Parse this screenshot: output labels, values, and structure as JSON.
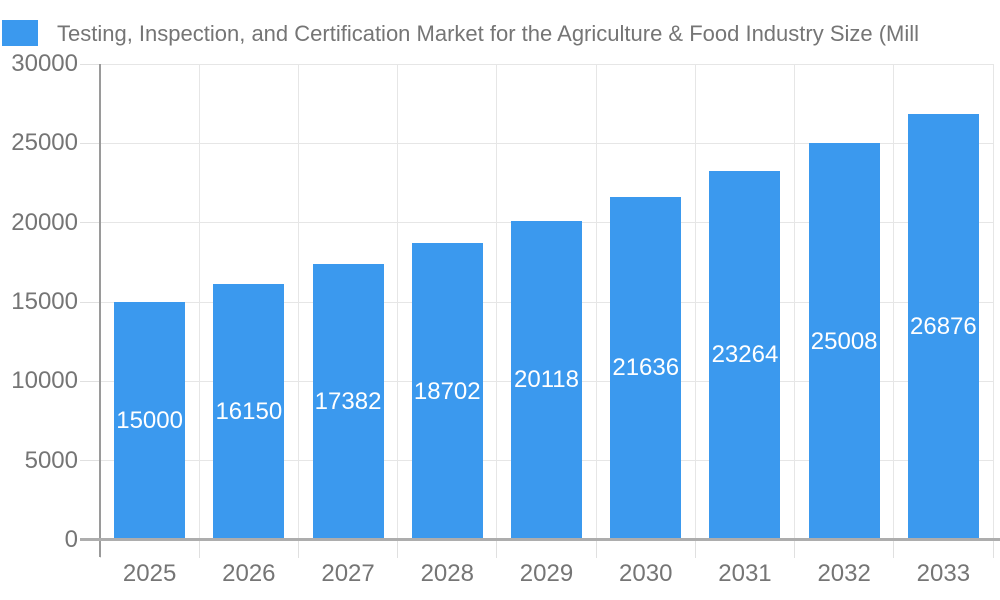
{
  "legend": {
    "position": "top-left",
    "series_label_note": "legend label doubles as chart title"
  },
  "chart_data": {
    "type": "bar",
    "title": "Testing, Inspection, and Certification Market for the Agriculture & Food Industry Size (Mill",
    "categories": [
      "2025",
      "2026",
      "2027",
      "2028",
      "2029",
      "2030",
      "2031",
      "2032",
      "2033"
    ],
    "values": [
      15000,
      16150,
      17382,
      18702,
      20118,
      21636,
      23264,
      25008,
      26876
    ],
    "bar_labels": [
      "15000",
      "16150",
      "17382",
      "18702",
      "20118",
      "21636",
      "23264",
      "25008",
      "26876"
    ],
    "xlabel": "",
    "ylabel": "",
    "ylim": [
      0,
      30000
    ],
    "y_ticks": [
      0,
      5000,
      10000,
      15000,
      20000,
      25000,
      30000
    ],
    "y_tick_labels": [
      "0",
      "5000",
      "10000",
      "15000",
      "20000",
      "25000",
      "30000"
    ],
    "grid": true,
    "legend_position": "top-left",
    "colors": {
      "bar": "#3B99EE",
      "bar_label_text": "#FFFFFF",
      "title_text": "#757575",
      "axis_label_text": "#757575",
      "gridline": "#E6E6E6",
      "tick": "#E0E0E0",
      "y_axis_line": "#9A9A9A",
      "baseline": "#ADADAD",
      "background": "#FFFFFF"
    }
  }
}
